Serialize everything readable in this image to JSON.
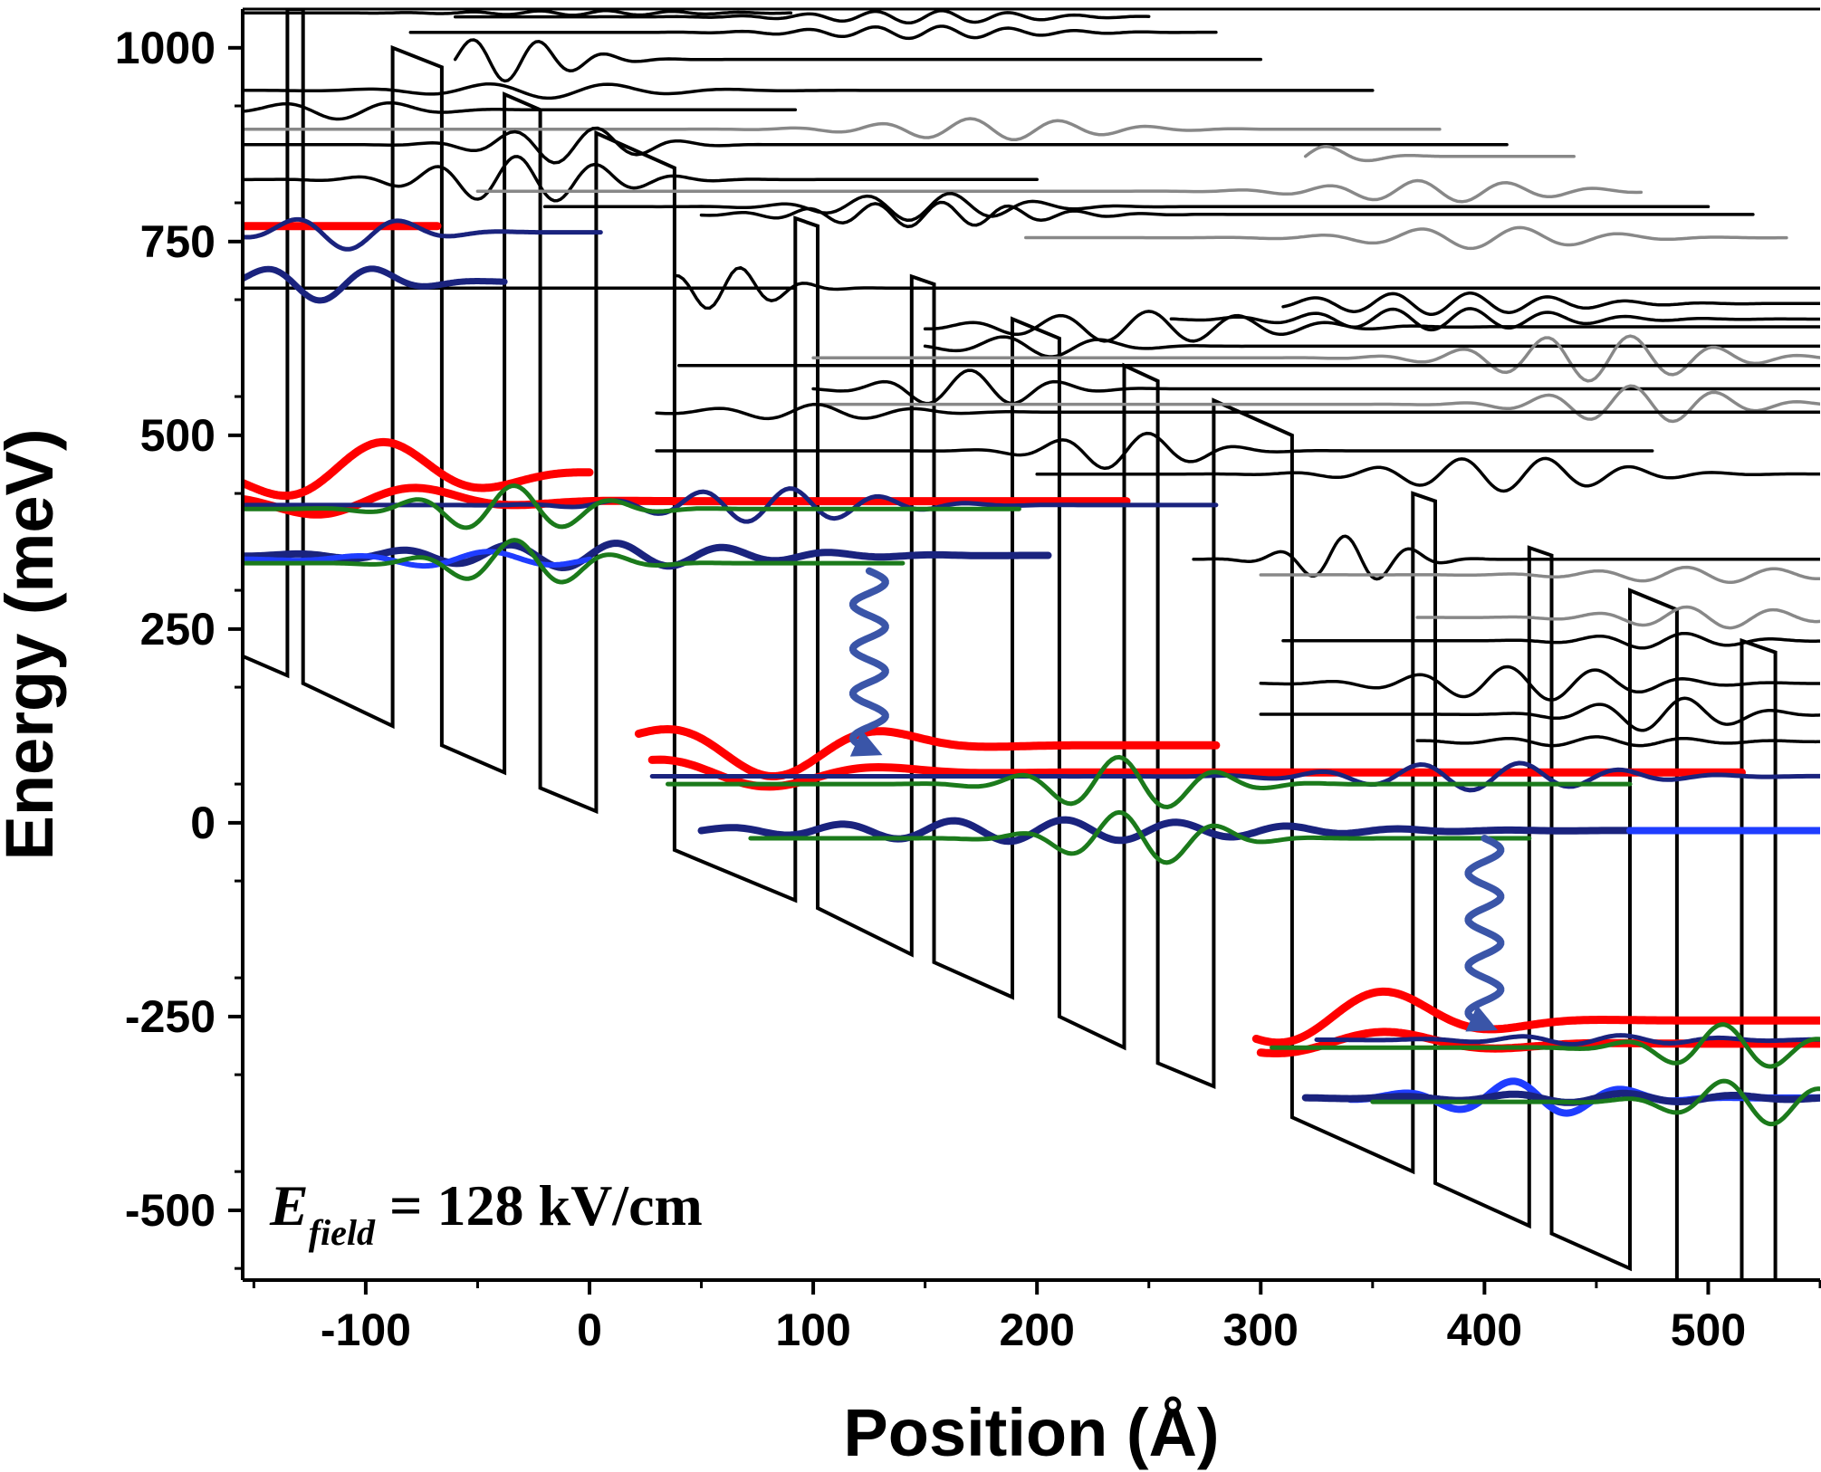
{
  "chart_data": {
    "type": "line",
    "title": "",
    "xlabel": "Position (Å)",
    "ylabel": "Energy (meV)",
    "xlim": [
      -155,
      550
    ],
    "ylim": [
      -590,
      1050
    ],
    "xticks": [
      -100,
      0,
      100,
      200,
      300,
      400,
      500
    ],
    "yticks": [
      -500,
      -250,
      0,
      250,
      500,
      750,
      1000
    ],
    "grid": false,
    "legend": "none",
    "annotation": {
      "prefix": "E",
      "subscript": "field",
      "suffix": " = 128 kV/cm"
    },
    "colors": {
      "band_edge": "#000000",
      "upper_states": "#000000",
      "upper_states_alt": "#888888",
      "upper_laser_level": "#ff0000",
      "lower_level_dark": "#1a237e",
      "lower_level_light": "#1f3dff",
      "injector_level": "#1b7a1b",
      "photon_arrow": "#3a55a8"
    },
    "field_slope_meV_per_A": -1.28,
    "conduction_band_profile": [
      {
        "x": -155,
        "y": 215
      },
      {
        "x": -135,
        "y": 190
      },
      {
        "x": -135,
        "y": 1050
      },
      {
        "x": -128,
        "y": 1050
      },
      {
        "x": -128,
        "y": 180
      },
      {
        "x": -88,
        "y": 125
      },
      {
        "x": -88,
        "y": 1000
      },
      {
        "x": -66,
        "y": 975
      },
      {
        "x": -66,
        "y": 100
      },
      {
        "x": -38,
        "y": 65
      },
      {
        "x": -38,
        "y": 940
      },
      {
        "x": -22,
        "y": 920
      },
      {
        "x": -22,
        "y": 45
      },
      {
        "x": 3,
        "y": 15
      },
      {
        "x": 3,
        "y": 890
      },
      {
        "x": 38,
        "y": 845
      },
      {
        "x": 38,
        "y": -35
      },
      {
        "x": 92,
        "y": -100
      },
      {
        "x": 92,
        "y": 780
      },
      {
        "x": 102,
        "y": 770
      },
      {
        "x": 102,
        "y": -110
      },
      {
        "x": 144,
        "y": -170
      },
      {
        "x": 144,
        "y": 705
      },
      {
        "x": 154,
        "y": 695
      },
      {
        "x": 154,
        "y": -180
      },
      {
        "x": 189,
        "y": -225
      },
      {
        "x": 189,
        "y": 650
      },
      {
        "x": 210,
        "y": 625
      },
      {
        "x": 210,
        "y": -250
      },
      {
        "x": 239,
        "y": -290
      },
      {
        "x": 239,
        "y": 590
      },
      {
        "x": 254,
        "y": 570
      },
      {
        "x": 254,
        "y": -310
      },
      {
        "x": 279,
        "y": -340
      },
      {
        "x": 279,
        "y": 545
      },
      {
        "x": 314,
        "y": 500
      },
      {
        "x": 314,
        "y": -380
      },
      {
        "x": 368,
        "y": -450
      },
      {
        "x": 368,
        "y": 425
      },
      {
        "x": 378,
        "y": 415
      },
      {
        "x": 378,
        "y": -465
      },
      {
        "x": 420,
        "y": -520
      },
      {
        "x": 420,
        "y": 355
      },
      {
        "x": 430,
        "y": 345
      },
      {
        "x": 430,
        "y": -530
      },
      {
        "x": 465,
        "y": -575
      },
      {
        "x": 465,
        "y": 300
      },
      {
        "x": 486,
        "y": 275
      },
      {
        "x": 486,
        "y": -600
      },
      {
        "x": 515,
        "y": -600
      },
      {
        "x": 515,
        "y": 235
      },
      {
        "x": 530,
        "y": 220
      },
      {
        "x": 530,
        "y": -600
      }
    ],
    "series": [
      {
        "color": "upper_states",
        "kind": "wave",
        "x0": -155,
        "x1": 92,
        "level": 690,
        "amp": 0,
        "period": 30,
        "phase": 0,
        "env_center": 0,
        "env_width": 100,
        "width": 3.5
      },
      {
        "color": "upper_states",
        "kind": "wave",
        "x0": 38,
        "x1": 550,
        "level": 690,
        "amp": 28,
        "period": 30,
        "phase": 0,
        "env_center": 60,
        "env_width": 30,
        "width": 3.5
      },
      {
        "color": "upper_states",
        "kind": "wave",
        "x0": -155,
        "x1": 92,
        "level": 920,
        "amp": 12,
        "period": 50,
        "phase": 0,
        "env_center": -110,
        "env_width": 40,
        "width": 3.5
      },
      {
        "color": "upper_states",
        "kind": "wave",
        "x0": -155,
        "x1": 200,
        "level": 830,
        "amp": 30,
        "period": 36,
        "phase": 1,
        "env_center": -30,
        "env_width": 50,
        "width": 3.5
      },
      {
        "color": "upper_states_alt",
        "kind": "wave",
        "x0": -155,
        "x1": 380,
        "level": 895,
        "amp": 14,
        "period": 40,
        "phase": 0,
        "env_center": 180,
        "env_width": 60,
        "width": 3.5
      },
      {
        "color": "upper_states",
        "kind": "wave",
        "x0": -155,
        "x1": 350,
        "level": 945,
        "amp": 10,
        "period": 55,
        "phase": 0.5,
        "env_center": -20,
        "env_width": 60,
        "width": 3.5
      },
      {
        "color": "upper_states",
        "kind": "wave",
        "x0": -60,
        "x1": 300,
        "level": 985,
        "amp": 28,
        "period": 30,
        "phase": 0,
        "env_center": -40,
        "env_width": 40,
        "width": 3.5
      },
      {
        "color": "upper_states",
        "kind": "wave",
        "x0": -80,
        "x1": 280,
        "level": 1020,
        "amp": 8,
        "period": 30,
        "phase": 0,
        "env_center": 150,
        "env_width": 60,
        "width": 3.5
      },
      {
        "color": "upper_states",
        "kind": "wave",
        "x0": -155,
        "x1": 90,
        "level": 1045,
        "amp": 3,
        "period": 30,
        "phase": 0,
        "env_center": 0,
        "env_width": 60,
        "width": 3.5
      },
      {
        "color": "upper_states",
        "kind": "wave",
        "x0": -60,
        "x1": 250,
        "level": 1040,
        "amp": 8,
        "period": 30,
        "phase": 0,
        "env_center": 150,
        "env_width": 60,
        "width": 3.5
      },
      {
        "color": "upper_states",
        "kind": "wave",
        "x0": -155,
        "x1": 410,
        "level": 875,
        "amp": 24,
        "period": 38,
        "phase": 1,
        "env_center": -10,
        "env_width": 40,
        "width": 3.5
      },
      {
        "color": "upper_states_alt",
        "kind": "wave",
        "x0": 320,
        "x1": 440,
        "level": 860,
        "amp": 14,
        "period": 40,
        "phase": 0,
        "env_center": 320,
        "env_width": 30,
        "width": 3.5
      },
      {
        "color": "upper_states_alt",
        "kind": "wave",
        "x0": -50,
        "x1": 470,
        "level": 815,
        "amp": 14,
        "period": 40,
        "phase": 0,
        "env_center": 380,
        "env_width": 60,
        "width": 3.5
      },
      {
        "color": "upper_states",
        "kind": "wave",
        "x0": -20,
        "x1": 500,
        "level": 795,
        "amp": 18,
        "period": 38,
        "phase": 0,
        "env_center": 150,
        "env_width": 50,
        "width": 3.5
      },
      {
        "color": "upper_states",
        "kind": "wave",
        "x0": 50,
        "x1": 520,
        "level": 785,
        "amp": 16,
        "period": 30,
        "phase": 0,
        "env_center": 150,
        "env_width": 60,
        "width": 3.5
      },
      {
        "color": "upper_states_alt",
        "kind": "wave",
        "x0": 195,
        "x1": 535,
        "level": 755,
        "amp": 14,
        "period": 45,
        "phase": 0,
        "env_center": 400,
        "env_width": 60,
        "width": 3.5
      },
      {
        "color": "upper_states",
        "kind": "wave",
        "x0": 310,
        "x1": 550,
        "level": 670,
        "amp": 14,
        "period": 35,
        "phase": 0,
        "env_center": 380,
        "env_width": 70,
        "width": 3.5
      },
      {
        "color": "upper_states",
        "kind": "wave",
        "x0": 260,
        "x1": 550,
        "level": 650,
        "amp": 14,
        "period": 35,
        "phase": 0,
        "env_center": 380,
        "env_width": 70,
        "width": 3.5
      },
      {
        "color": "upper_states",
        "kind": "wave",
        "x0": 150,
        "x1": 550,
        "level": 640,
        "amp": 20,
        "period": 40,
        "phase": 0,
        "env_center": 250,
        "env_width": 70,
        "width": 3.5
      },
      {
        "color": "upper_states",
        "kind": "wave",
        "x0": 150,
        "x1": 550,
        "level": 615,
        "amp": 14,
        "period": 45,
        "phase": 1,
        "env_center": 200,
        "env_width": 40,
        "width": 3.5
      },
      {
        "color": "upper_states_alt",
        "kind": "wave",
        "x0": 100,
        "x1": 550,
        "level": 600,
        "amp": 30,
        "period": 38,
        "phase": 0,
        "env_center": 450,
        "env_width": 60,
        "width": 3.5
      },
      {
        "color": "upper_states",
        "kind": "wave",
        "x0": 40,
        "x1": 550,
        "level": 590,
        "amp": 0,
        "period": 40,
        "phase": 0,
        "env_center": 300,
        "env_width": 60,
        "width": 3.5
      },
      {
        "color": "upper_states",
        "kind": "wave",
        "x0": 100,
        "x1": 550,
        "level": 560,
        "amp": 24,
        "period": 40,
        "phase": 0,
        "env_center": 170,
        "env_width": 40,
        "width": 3.5
      },
      {
        "color": "upper_states_alt",
        "kind": "wave",
        "x0": 100,
        "x1": 550,
        "level": 540,
        "amp": 24,
        "period": 38,
        "phase": 0,
        "env_center": 470,
        "env_width": 50,
        "width": 3.5
      },
      {
        "color": "upper_states",
        "kind": "wave",
        "x0": 30,
        "x1": 550,
        "level": 530,
        "amp": 10,
        "period": 45,
        "phase": 0,
        "env_center": 100,
        "env_width": 50,
        "width": 3.5
      },
      {
        "color": "upper_states",
        "kind": "wave",
        "x0": 30,
        "x1": 475,
        "level": 480,
        "amp": 24,
        "period": 40,
        "phase": 0,
        "env_center": 240,
        "env_width": 40,
        "width": 3.5
      },
      {
        "color": "upper_states",
        "kind": "wave",
        "x0": 200,
        "x1": 550,
        "level": 450,
        "amp": 22,
        "period": 38,
        "phase": 0,
        "env_center": 410,
        "env_width": 60,
        "width": 3.5
      },
      {
        "color": "upper_states",
        "kind": "wave",
        "x0": 270,
        "x1": 550,
        "level": 340,
        "amp": 30,
        "period": 30,
        "phase": 0,
        "env_center": 340,
        "env_width": 30,
        "width": 3.5
      },
      {
        "color": "upper_states_alt",
        "kind": "wave",
        "x0": 300,
        "x1": 550,
        "level": 320,
        "amp": 10,
        "period": 40,
        "phase": 0,
        "env_center": 500,
        "env_width": 60,
        "width": 3.5
      },
      {
        "color": "upper_states_alt",
        "kind": "wave",
        "x0": 370,
        "x1": 550,
        "level": 265,
        "amp": 14,
        "period": 40,
        "phase": 0,
        "env_center": 500,
        "env_width": 50,
        "width": 3.5
      },
      {
        "color": "upper_states",
        "kind": "wave",
        "x0": 310,
        "x1": 550,
        "level": 235,
        "amp": 10,
        "period": 40,
        "phase": 0,
        "env_center": 480,
        "env_width": 40,
        "width": 3.5
      },
      {
        "color": "upper_states",
        "kind": "wave",
        "x0": 300,
        "x1": 550,
        "level": 180,
        "amp": 22,
        "period": 40,
        "phase": 0,
        "env_center": 420,
        "env_width": 60,
        "width": 3.5
      },
      {
        "color": "upper_states",
        "kind": "wave",
        "x0": 300,
        "x1": 550,
        "level": 140,
        "amp": 22,
        "period": 40,
        "phase": 0,
        "env_center": 480,
        "env_width": 40,
        "width": 3.5
      },
      {
        "color": "upper_states",
        "kind": "wave",
        "x0": 370,
        "x1": 550,
        "level": 105,
        "amp": 6,
        "period": 40,
        "phase": 0,
        "env_center": 450,
        "env_width": 60,
        "width": 3.5
      },
      {
        "color": "upper_laser_level",
        "kind": "wave",
        "x0": -155,
        "x1": -68,
        "level": 770,
        "amp": 0,
        "period": 40,
        "phase": 0,
        "env_center": 0,
        "env_width": 60,
        "width": 9
      },
      {
        "color": "lower_level_dark",
        "kind": "wave",
        "x0": -155,
        "x1": 5,
        "level": 762,
        "amp": 22,
        "period": 48,
        "phase": 0,
        "env_center": -110,
        "env_width": 40,
        "width": 5
      },
      {
        "color": "lower_level_dark",
        "kind": "wave",
        "x0": -155,
        "x1": -38,
        "level": 698,
        "amp": 24,
        "period": 50,
        "phase": 1,
        "env_center": -120,
        "env_width": 40,
        "width": 7
      },
      {
        "color": "upper_laser_level",
        "kind": "wave",
        "x0": -155,
        "x1": 0,
        "level": 450,
        "amp": 42,
        "period": 100,
        "phase": 1,
        "env_center": -100,
        "env_width": 60,
        "width": 9
      },
      {
        "color": "upper_laser_level",
        "kind": "wave",
        "x0": -155,
        "x1": 240,
        "level": 415,
        "amp": 20,
        "period": 100,
        "phase": 0,
        "env_center": -100,
        "env_width": 60,
        "width": 9
      },
      {
        "color": "lower_level_dark",
        "kind": "wave",
        "x0": -155,
        "x1": 280,
        "level": 410,
        "amp": 22,
        "period": 40,
        "phase": 0,
        "env_center": 80,
        "env_width": 60,
        "width": 5
      },
      {
        "color": "injector_level",
        "kind": "wave",
        "x0": -155,
        "x1": 192,
        "level": 405,
        "amp": 30,
        "period": 45,
        "phase": 0,
        "env_center": -35,
        "env_width": 45,
        "width": 5
      },
      {
        "color": "lower_level_dark",
        "kind": "wave",
        "x0": -155,
        "x1": 205,
        "level": 345,
        "amp": 16,
        "period": 48,
        "phase": 0,
        "env_center": 0,
        "env_width": 90,
        "width": 8
      },
      {
        "color": "lower_level_light",
        "kind": "wave",
        "x0": -155,
        "x1": 0,
        "level": 340,
        "amp": 10,
        "period": 60,
        "phase": 0,
        "env_center": -50,
        "env_width": 60,
        "width": 6
      },
      {
        "color": "injector_level",
        "kind": "wave",
        "x0": -155,
        "x1": 140,
        "level": 335,
        "amp": 30,
        "period": 45,
        "phase": 0,
        "env_center": -30,
        "env_width": 40,
        "width": 5
      },
      {
        "color": "upper_laser_level",
        "kind": "wave",
        "x0": 22,
        "x1": 280,
        "level": 100,
        "amp": 40,
        "period": 110,
        "phase": 0,
        "env_center": 80,
        "env_width": 60,
        "width": 9
      },
      {
        "color": "upper_laser_level",
        "kind": "wave",
        "x0": 28,
        "x1": 515,
        "level": 65,
        "amp": 20,
        "period": 110,
        "phase": 0,
        "env_center": 60,
        "env_width": 70,
        "width": 9
      },
      {
        "color": "lower_level_dark",
        "kind": "wave",
        "x0": 28,
        "x1": 550,
        "level": 60,
        "amp": 18,
        "period": 45,
        "phase": 0,
        "env_center": 400,
        "env_width": 70,
        "width": 5
      },
      {
        "color": "injector_level",
        "kind": "wave",
        "x0": 35,
        "x1": 465,
        "level": 50,
        "amp": 35,
        "period": 45,
        "phase": 0,
        "env_center": 240,
        "env_width": 45,
        "width": 5
      },
      {
        "color": "lower_level_dark",
        "kind": "wave",
        "x0": 50,
        "x1": 465,
        "level": -10,
        "amp": 14,
        "period": 50,
        "phase": 0,
        "env_center": 200,
        "env_width": 120,
        "width": 8
      },
      {
        "color": "lower_level_light",
        "kind": "wave",
        "x0": 465,
        "x1": 550,
        "level": -10,
        "amp": 0,
        "period": 50,
        "phase": 0,
        "env_center": 0,
        "env_width": 60,
        "width": 8
      },
      {
        "color": "injector_level",
        "kind": "wave",
        "x0": 72,
        "x1": 420,
        "level": -20,
        "amp": 35,
        "period": 45,
        "phase": 0,
        "env_center": 245,
        "env_width": 40,
        "width": 5
      },
      {
        "color": "upper_laser_level",
        "kind": "wave",
        "x0": 298,
        "x1": 550,
        "level": -255,
        "amp": 40,
        "period": 110,
        "phase": 0,
        "env_center": 340,
        "env_width": 60,
        "width": 9
      },
      {
        "color": "upper_laser_level",
        "kind": "wave",
        "x0": 300,
        "x1": 550,
        "level": -285,
        "amp": 16,
        "period": 110,
        "phase": 0,
        "env_center": 340,
        "env_width": 70,
        "width": 9
      },
      {
        "color": "lower_level_dark",
        "kind": "wave",
        "x0": 325,
        "x1": 550,
        "level": -280,
        "amp": 6,
        "period": 45,
        "phase": 0,
        "env_center": 450,
        "env_width": 60,
        "width": 5
      },
      {
        "color": "injector_level",
        "kind": "wave",
        "x0": 305,
        "x1": 550,
        "level": -290,
        "amp": 30,
        "period": 45,
        "phase": 0,
        "env_center": 510,
        "env_width": 40,
        "width": 5
      },
      {
        "color": "lower_level_light",
        "kind": "wave",
        "x0": 340,
        "x1": 550,
        "level": -355,
        "amp": 22,
        "period": 50,
        "phase": 0,
        "env_center": 420,
        "env_width": 50,
        "width": 8
      },
      {
        "color": "lower_level_dark",
        "kind": "wave",
        "x0": 320,
        "x1": 550,
        "level": -355,
        "amp": 6,
        "period": 50,
        "phase": 0,
        "env_center": 450,
        "env_width": 80,
        "width": 8
      },
      {
        "color": "injector_level",
        "kind": "wave",
        "x0": 350,
        "x1": 550,
        "level": -360,
        "amp": 30,
        "period": 45,
        "phase": 0,
        "env_center": 520,
        "env_width": 40,
        "width": 5
      }
    ],
    "photon_arrows": [
      {
        "x": 125,
        "y_top": 325,
        "y_bottom": 95
      },
      {
        "x": 400,
        "y_top": -20,
        "y_bottom": -260
      }
    ]
  }
}
